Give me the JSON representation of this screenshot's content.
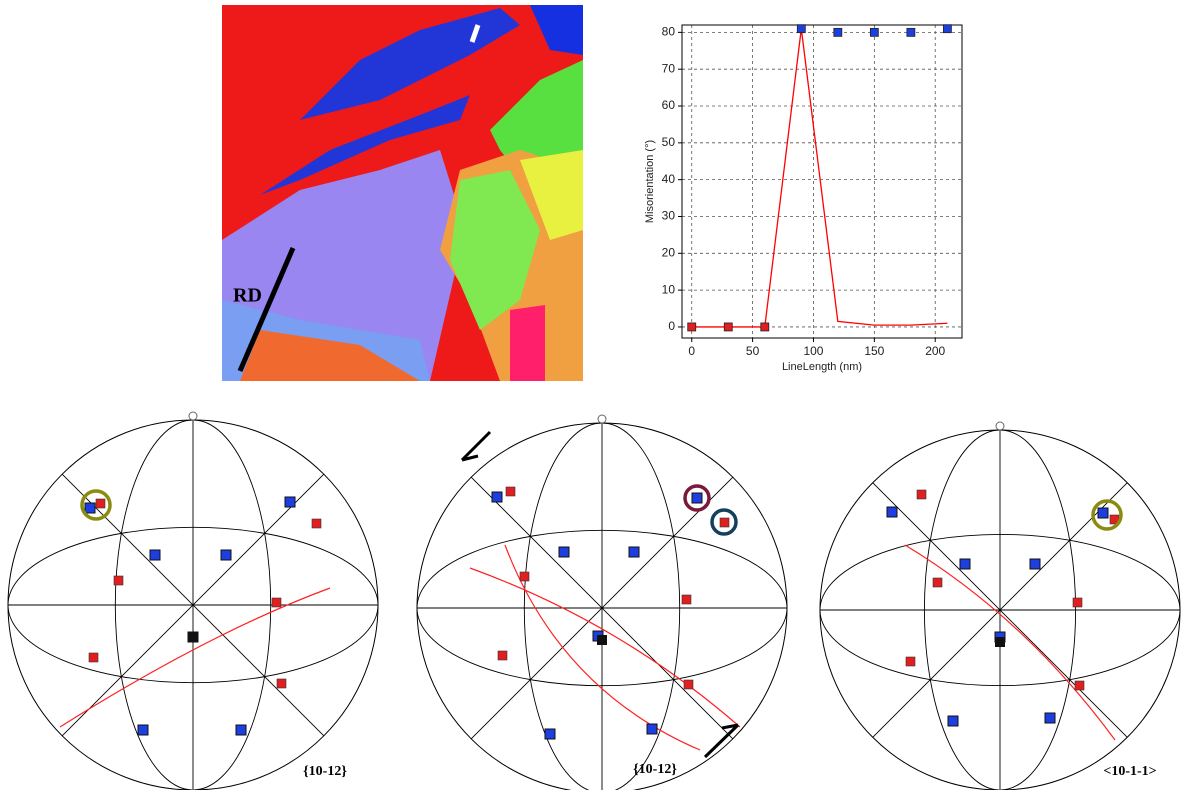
{
  "chart_data": {
    "type": "line",
    "xlabel": "LineLength (nm)",
    "ylabel": "Misorientation (°)",
    "x": [
      0,
      30,
      60,
      90,
      120,
      150,
      180,
      210
    ],
    "series": [
      {
        "color": "#ff0000",
        "values": [
          0,
          0,
          0,
          81,
          1.5,
          0.5,
          0.5,
          1
        ]
      },
      {
        "colors": [
          "#e02020",
          "#e02020",
          "#e02020",
          "#1d3fe0",
          "#1d3fe0",
          "#1d3fe0",
          "#1d3fe0",
          "#1d3fe0"
        ],
        "values": [
          0,
          0,
          0,
          81,
          80,
          80,
          80,
          81
        ],
        "marker": "square"
      }
    ],
    "xlim": [
      -8,
      222
    ],
    "ylim": [
      -3,
      82
    ],
    "xticks": [
      0,
      50,
      100,
      150,
      200
    ],
    "yticks": [
      0,
      10,
      20,
      30,
      40,
      50,
      60,
      70,
      80
    ],
    "grid": true
  },
  "map_label": "RD",
  "pole_figures": [
    {
      "label": "{10-12}"
    },
    {
      "label": "{10-12}"
    },
    {
      "label": "<10-1-1>"
    }
  ]
}
